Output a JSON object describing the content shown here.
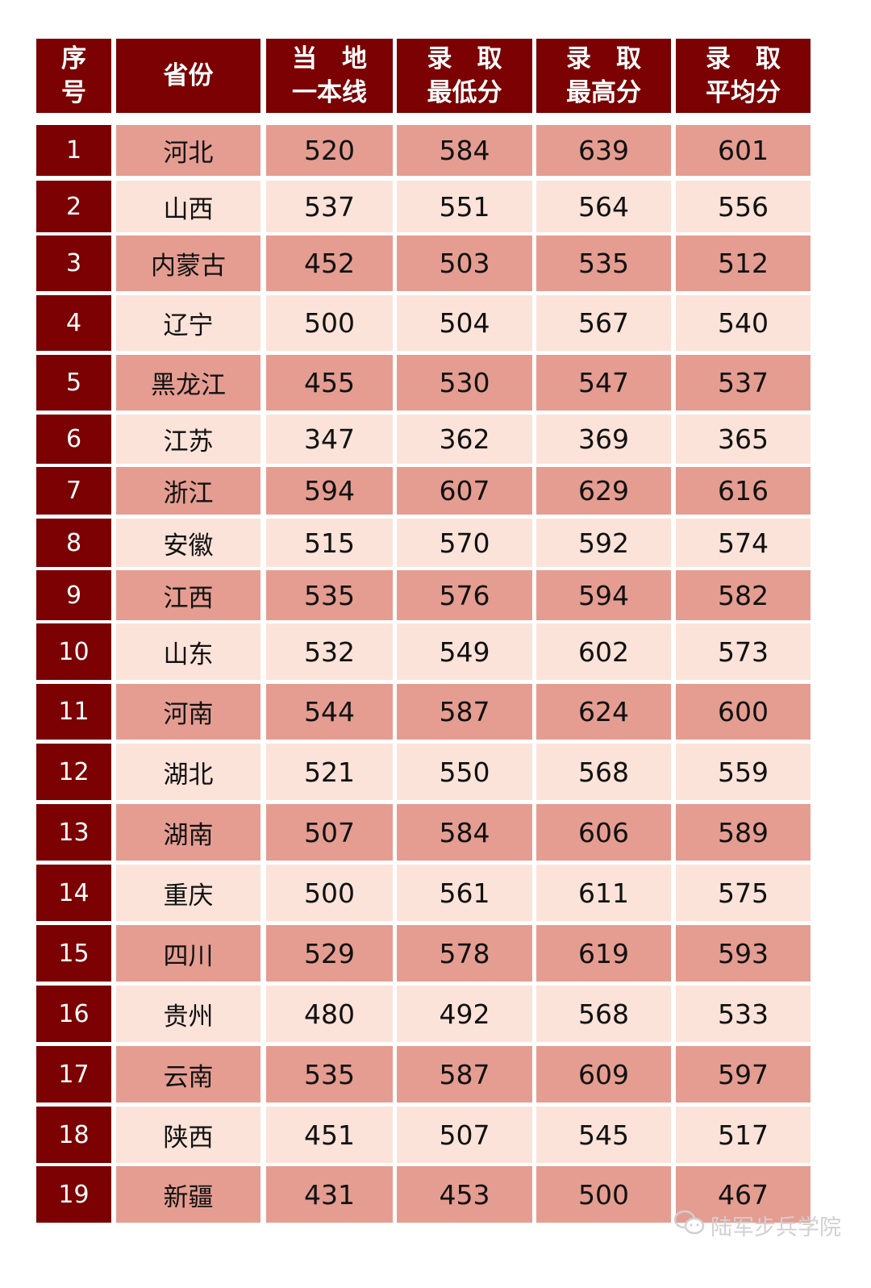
{
  "header": [
    "序\n号",
    "省份",
    "当　地\n一本线",
    "录　取\n最低分",
    "录　取\n最高分",
    "录　取\n平均分"
  ],
  "rows": [
    [
      "1",
      "河北",
      "520",
      "584",
      "639",
      "601"
    ],
    [
      "2",
      "山西",
      "537",
      "551",
      "564",
      "556"
    ],
    [
      "3",
      "内蒙古",
      "452",
      "503",
      "535",
      "512"
    ],
    [
      "4",
      "辽宁",
      "500",
      "504",
      "567",
      "540"
    ],
    [
      "5",
      "黑龙江",
      "455",
      "530",
      "547",
      "537"
    ],
    [
      "6",
      "江苏",
      "347",
      "362",
      "369",
      "365"
    ],
    [
      "7",
      "浙江",
      "594",
      "607",
      "629",
      "616"
    ],
    [
      "8",
      "安徽",
      "515",
      "570",
      "592",
      "574"
    ],
    [
      "9",
      "江西",
      "535",
      "576",
      "594",
      "582"
    ],
    [
      "10",
      "山东",
      "532",
      "549",
      "602",
      "573"
    ],
    [
      "11",
      "河南",
      "544",
      "587",
      "624",
      "600"
    ],
    [
      "12",
      "湖北",
      "521",
      "550",
      "568",
      "559"
    ],
    [
      "13",
      "湖南",
      "507",
      "584",
      "606",
      "589"
    ],
    [
      "14",
      "重庆",
      "500",
      "561",
      "611",
      "575"
    ],
    [
      "15",
      "四川",
      "529",
      "578",
      "619",
      "593"
    ],
    [
      "16",
      "贵州",
      "480",
      "492",
      "568",
      "533"
    ],
    [
      "17",
      "云南",
      "535",
      "587",
      "609",
      "597"
    ],
    [
      "18",
      "陕西",
      "451",
      "507",
      "545",
      "517"
    ],
    [
      "19",
      "新疆",
      "431",
      "453",
      "500",
      "467"
    ]
  ],
  "colors": {
    "header": "#7b0102",
    "row_dark": "#e59d91",
    "row_light": "#fbe3d9"
  },
  "watermark": {
    "icon": "wechat-icon",
    "text": "陆军步兵学院"
  }
}
